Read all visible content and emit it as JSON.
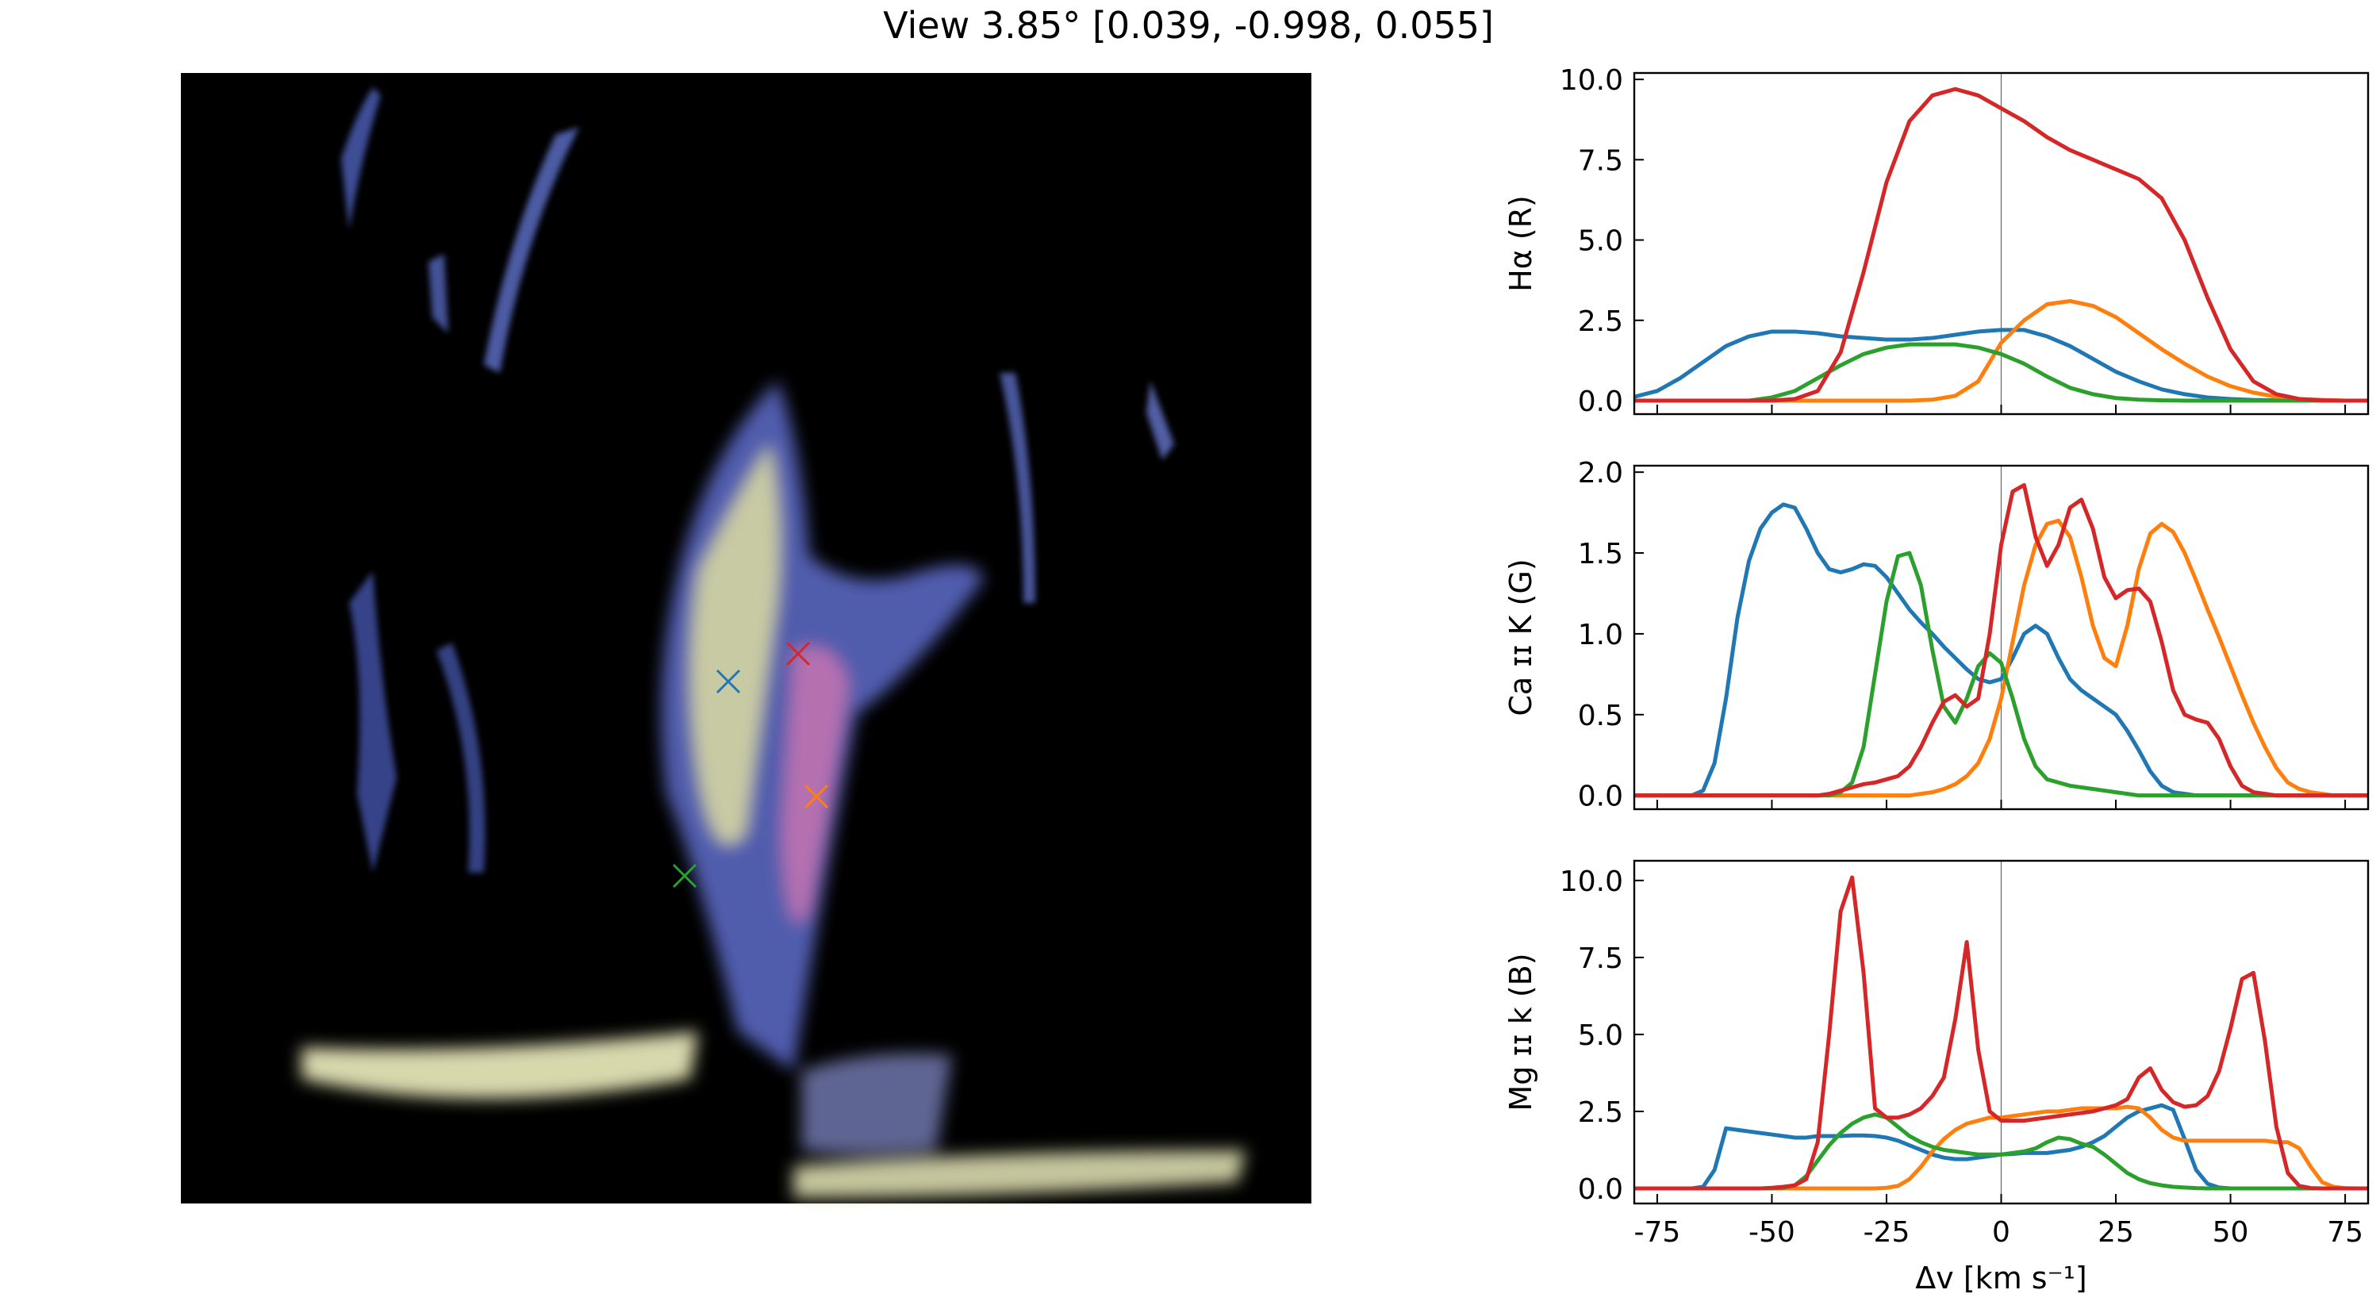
{
  "title": "View 3.85° [0.039, -0.998, 0.055]",
  "chart_data": [
    {
      "type": "line",
      "ylabel": "Hα (R)",
      "xlim": [
        -80,
        80
      ],
      "ylim": [
        -0.42,
        10.2
      ],
      "xticks": [
        -75,
        -50,
        -25,
        0,
        25,
        50,
        75
      ],
      "xticklabels": false,
      "yticks": [
        {
          "value": 0,
          "label": "0.0"
        },
        2.5,
        {
          "value": 5,
          "label": "5.0"
        },
        7.5,
        {
          "value": 10,
          "label": "10.0"
        }
      ],
      "vline": 0,
      "x": [
        -80,
        -75,
        -70,
        -65,
        -60,
        -55,
        -50,
        -45,
        -40,
        -35,
        -30,
        -25,
        -20,
        -15,
        -10,
        -5,
        0,
        5,
        10,
        15,
        20,
        25,
        30,
        35,
        40,
        45,
        50,
        55,
        60,
        65,
        70,
        75,
        80
      ],
      "series": [
        {
          "color": "#1f77b4",
          "values": [
            0.12,
            0.3,
            0.7,
            1.2,
            1.7,
            2.0,
            2.15,
            2.15,
            2.1,
            2.0,
            1.95,
            1.9,
            1.9,
            1.95,
            2.05,
            2.15,
            2.2,
            2.2,
            2.0,
            1.7,
            1.3,
            0.9,
            0.6,
            0.35,
            0.2,
            0.1,
            0.05,
            0.02,
            0.01,
            0,
            0,
            0,
            0
          ]
        },
        {
          "color": "#ff7f0e",
          "values": [
            0,
            0,
            0,
            0,
            0,
            0,
            0,
            0,
            0,
            0,
            0,
            0,
            0,
            0.03,
            0.15,
            0.6,
            1.8,
            2.5,
            3.0,
            3.1,
            2.95,
            2.6,
            2.1,
            1.6,
            1.15,
            0.75,
            0.45,
            0.25,
            0.12,
            0.05,
            0.02,
            0,
            0
          ]
        },
        {
          "color": "#2ca02c",
          "values": [
            0,
            0,
            0,
            0,
            0,
            0,
            0.1,
            0.3,
            0.7,
            1.1,
            1.45,
            1.65,
            1.75,
            1.75,
            1.75,
            1.65,
            1.45,
            1.15,
            0.75,
            0.4,
            0.2,
            0.08,
            0.03,
            0.01,
            0,
            0,
            0,
            0,
            0,
            0,
            0,
            0,
            0
          ]
        },
        {
          "color": "#d62728",
          "values": [
            0,
            0,
            0,
            0,
            0,
            0,
            0,
            0.05,
            0.3,
            1.5,
            4.0,
            6.8,
            8.7,
            9.5,
            9.7,
            9.5,
            9.1,
            8.7,
            8.2,
            7.8,
            7.5,
            7.2,
            6.9,
            6.3,
            5.0,
            3.2,
            1.6,
            0.6,
            0.2,
            0.05,
            0.01,
            0,
            0
          ]
        }
      ]
    },
    {
      "type": "line",
      "ylabel": "Ca ɪɪ K (G)",
      "xlim": [
        -80,
        80
      ],
      "ylim": [
        -0.085,
        2.04
      ],
      "xticks": [
        -75,
        -50,
        -25,
        0,
        25,
        50,
        75
      ],
      "xticklabels": false,
      "yticks": [
        {
          "value": 0,
          "label": "0.0"
        },
        0.5,
        {
          "value": 1,
          "label": "1.0"
        },
        1.5,
        {
          "value": 2,
          "label": "2.0"
        }
      ],
      "vline": 0,
      "x": [
        -80,
        -77.5,
        -75,
        -72.5,
        -70,
        -67.5,
        -65,
        -62.5,
        -60,
        -57.5,
        -55,
        -52.5,
        -50,
        -47.5,
        -45,
        -42.5,
        -40,
        -37.5,
        -35,
        -32.5,
        -30,
        -27.5,
        -25,
        -22.5,
        -20,
        -17.5,
        -15,
        -12.5,
        -10,
        -7.5,
        -5,
        -2.5,
        0,
        2.5,
        5,
        7.5,
        10,
        12.5,
        15,
        17.5,
        20,
        22.5,
        25,
        27.5,
        30,
        32.5,
        35,
        37.5,
        40,
        42.5,
        45,
        47.5,
        50,
        52.5,
        55,
        57.5,
        60,
        62.5,
        65,
        67.5,
        70,
        72.5,
        75,
        77.5,
        80
      ],
      "series": [
        {
          "color": "#1f77b4",
          "values": [
            0,
            0,
            0,
            0,
            0,
            0,
            0.03,
            0.2,
            0.6,
            1.1,
            1.45,
            1.65,
            1.75,
            1.8,
            1.78,
            1.65,
            1.5,
            1.4,
            1.38,
            1.4,
            1.43,
            1.42,
            1.35,
            1.25,
            1.15,
            1.07,
            1.0,
            0.92,
            0.85,
            0.78,
            0.72,
            0.7,
            0.72,
            0.85,
            1.0,
            1.05,
            1.0,
            0.85,
            0.72,
            0.65,
            0.6,
            0.55,
            0.5,
            0.4,
            0.28,
            0.15,
            0.06,
            0.02,
            0.01,
            0,
            0,
            0,
            0,
            0,
            0,
            0,
            0,
            0,
            0,
            0,
            0,
            0,
            0,
            0,
            0
          ]
        },
        {
          "color": "#ff7f0e",
          "values": [
            0,
            0,
            0,
            0,
            0,
            0,
            0,
            0,
            0,
            0,
            0,
            0,
            0,
            0,
            0,
            0,
            0,
            0,
            0,
            0,
            0,
            0,
            0,
            0,
            0,
            0.01,
            0.02,
            0.04,
            0.07,
            0.12,
            0.2,
            0.35,
            0.6,
            0.95,
            1.3,
            1.55,
            1.68,
            1.7,
            1.6,
            1.35,
            1.05,
            0.85,
            0.8,
            1.05,
            1.4,
            1.62,
            1.68,
            1.63,
            1.5,
            1.33,
            1.15,
            0.98,
            0.8,
            0.62,
            0.45,
            0.3,
            0.17,
            0.08,
            0.04,
            0.02,
            0.01,
            0,
            0,
            0,
            0
          ]
        },
        {
          "color": "#2ca02c",
          "values": [
            0,
            0,
            0,
            0,
            0,
            0,
            0,
            0,
            0,
            0,
            0,
            0,
            0,
            0,
            0,
            0,
            0,
            0,
            0.02,
            0.08,
            0.3,
            0.75,
            1.2,
            1.48,
            1.5,
            1.3,
            0.9,
            0.55,
            0.45,
            0.6,
            0.8,
            0.88,
            0.82,
            0.6,
            0.35,
            0.18,
            0.1,
            0.08,
            0.06,
            0.05,
            0.04,
            0.03,
            0.02,
            0.01,
            0,
            0,
            0,
            0,
            0,
            0,
            0,
            0,
            0,
            0,
            0,
            0,
            0,
            0,
            0,
            0,
            0,
            0,
            0,
            0,
            0
          ]
        },
        {
          "color": "#d62728",
          "values": [
            0,
            0,
            0,
            0,
            0,
            0,
            0,
            0,
            0,
            0,
            0,
            0,
            0,
            0,
            0,
            0,
            0,
            0.01,
            0.03,
            0.05,
            0.07,
            0.08,
            0.1,
            0.12,
            0.18,
            0.3,
            0.45,
            0.58,
            0.62,
            0.55,
            0.6,
            1.0,
            1.55,
            1.88,
            1.92,
            1.6,
            1.42,
            1.55,
            1.78,
            1.83,
            1.65,
            1.35,
            1.22,
            1.27,
            1.28,
            1.2,
            0.95,
            0.65,
            0.5,
            0.47,
            0.45,
            0.35,
            0.18,
            0.06,
            0.02,
            0.01,
            0,
            0,
            0,
            0,
            0,
            0,
            0,
            0,
            0
          ]
        }
      ]
    },
    {
      "type": "line",
      "ylabel": "Mg ɪɪ k (B)",
      "xlabel": "Δv [km s⁻¹]",
      "xlim": [
        -80,
        80
      ],
      "ylim": [
        -0.49,
        10.64
      ],
      "xticks": [
        -75,
        -50,
        -25,
        0,
        25,
        50,
        75
      ],
      "xticklabels": true,
      "yticks": [
        {
          "value": 0,
          "label": "0.0"
        },
        2.5,
        {
          "value": 5,
          "label": "5.0"
        },
        7.5,
        {
          "value": 10,
          "label": "10.0"
        }
      ],
      "vline": 0,
      "x": [
        -80,
        -77.5,
        -75,
        -72.5,
        -70,
        -67.5,
        -65,
        -62.5,
        -60,
        -57.5,
        -55,
        -52.5,
        -50,
        -47.5,
        -45,
        -42.5,
        -40,
        -37.5,
        -35,
        -32.5,
        -30,
        -27.5,
        -25,
        -22.5,
        -20,
        -17.5,
        -15,
        -12.5,
        -10,
        -7.5,
        -5,
        -2.5,
        0,
        2.5,
        5,
        7.5,
        10,
        12.5,
        15,
        17.5,
        20,
        22.5,
        25,
        27.5,
        30,
        32.5,
        35,
        37.5,
        40,
        42.5,
        45,
        47.5,
        50,
        52.5,
        55,
        57.5,
        60,
        62.5,
        65,
        67.5,
        70,
        72.5,
        75,
        77.5,
        80
      ],
      "series": [
        {
          "color": "#1f77b4",
          "values": [
            0,
            0,
            0,
            0,
            0,
            0,
            0.05,
            0.6,
            1.95,
            1.9,
            1.85,
            1.8,
            1.75,
            1.7,
            1.65,
            1.65,
            1.7,
            1.7,
            1.7,
            1.72,
            1.72,
            1.7,
            1.65,
            1.55,
            1.4,
            1.25,
            1.1,
            1.0,
            0.95,
            0.95,
            1.0,
            1.05,
            1.1,
            1.12,
            1.15,
            1.15,
            1.15,
            1.2,
            1.25,
            1.35,
            1.5,
            1.7,
            2.0,
            2.3,
            2.5,
            2.6,
            2.7,
            2.55,
            1.6,
            0.6,
            0.15,
            0.03,
            0,
            0,
            0,
            0,
            0,
            0,
            0,
            0,
            0,
            0,
            0,
            0,
            0
          ]
        },
        {
          "color": "#ff7f0e",
          "values": [
            0,
            0,
            0,
            0,
            0,
            0,
            0,
            0,
            0,
            0,
            0,
            0,
            0,
            0,
            0,
            0,
            0,
            0,
            0,
            0,
            0,
            0,
            0.02,
            0.08,
            0.3,
            0.7,
            1.2,
            1.6,
            1.9,
            2.1,
            2.2,
            2.3,
            2.3,
            2.35,
            2.4,
            2.45,
            2.5,
            2.5,
            2.55,
            2.6,
            2.6,
            2.6,
            2.6,
            2.65,
            2.6,
            2.3,
            1.9,
            1.65,
            1.55,
            1.55,
            1.55,
            1.55,
            1.55,
            1.55,
            1.55,
            1.55,
            1.5,
            1.5,
            1.3,
            0.7,
            0.2,
            0.05,
            0.01,
            0,
            0
          ]
        },
        {
          "color": "#2ca02c",
          "values": [
            0,
            0,
            0,
            0,
            0,
            0,
            0,
            0,
            0,
            0,
            0,
            0,
            0,
            0.02,
            0.1,
            0.4,
            0.9,
            1.4,
            1.8,
            2.1,
            2.3,
            2.4,
            2.3,
            2.0,
            1.7,
            1.5,
            1.35,
            1.25,
            1.2,
            1.15,
            1.1,
            1.1,
            1.1,
            1.15,
            1.2,
            1.3,
            1.5,
            1.65,
            1.6,
            1.45,
            1.35,
            1.1,
            0.8,
            0.5,
            0.3,
            0.17,
            0.1,
            0.05,
            0.03,
            0.01,
            0,
            0,
            0,
            0,
            0,
            0,
            0,
            0,
            0,
            0,
            0,
            0,
            0,
            0,
            0
          ]
        },
        {
          "color": "#d62728",
          "values": [
            0,
            0,
            0,
            0,
            0,
            0,
            0,
            0,
            0,
            0,
            0,
            0,
            0.02,
            0.05,
            0.1,
            0.3,
            1.5,
            5.0,
            9.0,
            10.1,
            7.0,
            2.6,
            2.3,
            2.3,
            2.4,
            2.6,
            3.0,
            3.6,
            5.5,
            8.0,
            4.5,
            2.5,
            2.2,
            2.2,
            2.2,
            2.25,
            2.3,
            2.35,
            2.4,
            2.45,
            2.5,
            2.6,
            2.7,
            2.9,
            3.6,
            3.9,
            3.2,
            2.8,
            2.65,
            2.7,
            3.0,
            3.8,
            5.2,
            6.8,
            7.0,
            4.8,
            2.0,
            0.5,
            0.08,
            0.01,
            0,
            0,
            0,
            0,
            0
          ]
        }
      ]
    }
  ]
}
